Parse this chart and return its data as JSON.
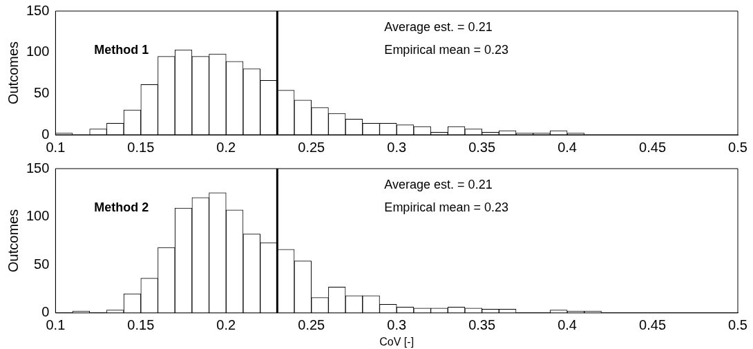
{
  "chart_data": [
    {
      "type": "histogram",
      "ylabel": "Outcomes",
      "annotations": [
        "Method 1",
        "Average est. = 0.21",
        "Empirical mean = 0.23"
      ],
      "bins": [
        0.1,
        0.11,
        0.12,
        0.13,
        0.14,
        0.15,
        0.16,
        0.17,
        0.18,
        0.19,
        0.2,
        0.21,
        0.22,
        0.23,
        0.24,
        0.25,
        0.26,
        0.27,
        0.28,
        0.29,
        0.3,
        0.31,
        0.32,
        0.33,
        0.34,
        0.35,
        0.36,
        0.37,
        0.38,
        0.39,
        0.4,
        0.41,
        0.42
      ],
      "values": [
        2,
        0,
        7,
        14,
        30,
        61,
        95,
        103,
        95,
        98,
        89,
        80,
        66,
        54,
        42,
        33,
        26,
        19,
        14,
        14,
        12,
        10,
        3,
        10,
        7,
        3,
        5,
        2,
        2,
        5,
        2,
        0
      ],
      "color": "#ffffff",
      "xlim": [
        0.1,
        0.5
      ],
      "xticks": [
        0.1,
        0.15,
        0.2,
        0.25,
        0.3,
        0.35,
        0.4,
        0.45,
        0.5
      ],
      "ylim": [
        0,
        150
      ],
      "yticks": [
        0,
        50,
        100,
        150
      ],
      "ref_lines": [
        {
          "axis": "x",
          "value": 0.23,
          "color": "#000000"
        }
      ],
      "grid": false,
      "legend": false
    },
    {
      "type": "histogram",
      "xlabel": "CoV [-]",
      "ylabel": "Outcomes",
      "annotations": [
        "Method 2",
        "Average est. = 0.21",
        "Empirical mean = 0.23"
      ],
      "bins": [
        0.1,
        0.11,
        0.12,
        0.13,
        0.14,
        0.15,
        0.16,
        0.17,
        0.18,
        0.19,
        0.2,
        0.21,
        0.22,
        0.23,
        0.24,
        0.25,
        0.26,
        0.27,
        0.28,
        0.29,
        0.3,
        0.31,
        0.32,
        0.33,
        0.34,
        0.35,
        0.36,
        0.37,
        0.38,
        0.39,
        0.4,
        0.41,
        0.42
      ],
      "values": [
        0,
        2,
        0,
        3,
        20,
        36,
        68,
        109,
        120,
        125,
        107,
        82,
        73,
        66,
        54,
        16,
        27,
        18,
        18,
        9,
        6,
        5,
        5,
        6,
        5,
        4,
        4,
        0,
        0,
        3,
        2,
        2
      ],
      "color": "#ffffff",
      "xlim": [
        0.1,
        0.5
      ],
      "xticks": [
        0.1,
        0.15,
        0.2,
        0.25,
        0.3,
        0.35,
        0.4,
        0.45,
        0.5
      ],
      "ylim": [
        0,
        150
      ],
      "yticks": [
        0,
        50,
        100,
        150
      ],
      "ref_lines": [
        {
          "axis": "x",
          "value": 0.23,
          "color": "#000000"
        }
      ],
      "grid": false,
      "legend": false
    }
  ]
}
